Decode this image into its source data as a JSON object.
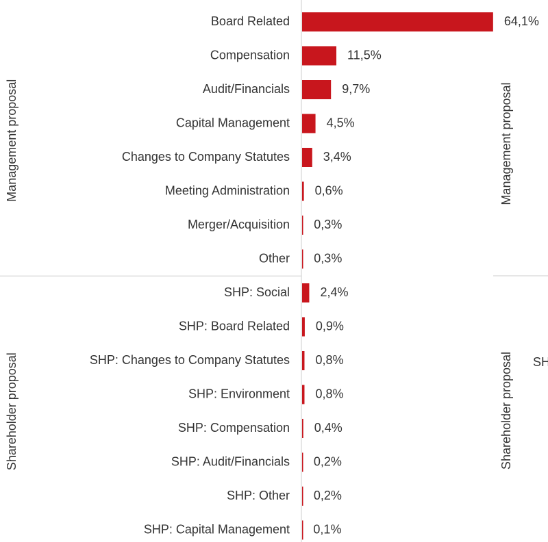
{
  "chart_data": [
    {
      "type": "bar",
      "orientation": "horizontal",
      "color": "#c8161d",
      "groups": [
        {
          "name": "Management proposal",
          "categories": [
            "Board Related",
            "Compensation",
            "Audit/Financials",
            "Capital Management",
            "Changes to Company Statutes",
            "Meeting Administration",
            "Merger/Acquisition",
            "Other"
          ],
          "values": [
            64.1,
            11.5,
            9.7,
            4.5,
            3.4,
            0.6,
            0.3,
            0.3
          ],
          "value_labels": [
            "64,1%",
            "11,5%",
            "9,7%",
            "4,5%",
            "3,4%",
            "0,6%",
            "0,3%",
            "0,3%"
          ]
        },
        {
          "name": "Shareholder proposal",
          "categories": [
            "SHP: Social",
            "SHP: Board Related",
            "SHP: Changes to Company Statutes",
            "SHP: Environment",
            "SHP: Compensation",
            "SHP: Audit/Financials",
            "SHP: Other",
            "SHP: Capital Management"
          ],
          "values": [
            2.4,
            0.9,
            0.8,
            0.8,
            0.4,
            0.2,
            0.2,
            0.1
          ],
          "value_labels": [
            "2,4%",
            "0,9%",
            "0,8%",
            "0,8%",
            "0,4%",
            "0,2%",
            "0,2%",
            "0,1%"
          ]
        }
      ]
    },
    {
      "type": "bar",
      "orientation": "horizontal",
      "groups": [
        {
          "name": "Management proposal"
        },
        {
          "name": "Shareholder proposal",
          "categories": [
            "SH"
          ]
        }
      ]
    }
  ]
}
